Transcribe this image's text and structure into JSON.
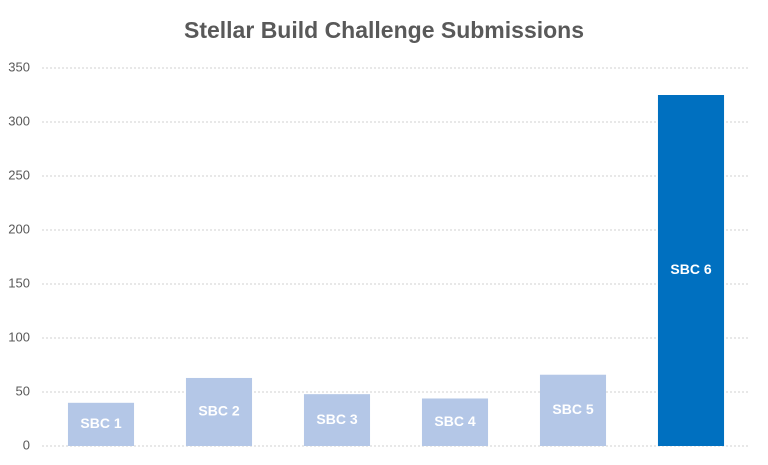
{
  "chart_data": {
    "type": "bar",
    "title": "Stellar Build Challenge Submissions",
    "categories": [
      "SBC 1",
      "SBC 2",
      "SBC 3",
      "SBC 4",
      "SBC 5",
      "SBC 6"
    ],
    "values": [
      40,
      63,
      48,
      44,
      66,
      325
    ],
    "colors": [
      "#b4c7e7",
      "#b4c7e7",
      "#b4c7e7",
      "#b4c7e7",
      "#b4c7e7",
      "#0070c0"
    ],
    "ylim": [
      0,
      350
    ],
    "yticks": [
      0,
      50,
      100,
      150,
      200,
      250,
      300,
      350
    ],
    "grid": true
  }
}
